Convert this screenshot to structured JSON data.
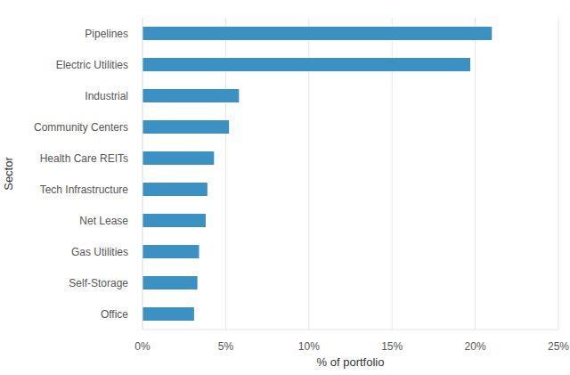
{
  "chart_data": {
    "type": "bar",
    "orientation": "horizontal",
    "xlabel": "% of portfolio",
    "ylabel": "Sector",
    "categories": [
      "Pipelines",
      "Electric Utilities",
      "Industrial",
      "Community Centers",
      "Health Care REITs",
      "Tech Infrastructure",
      "Net Lease",
      "Gas Utilities",
      "Self-Storage",
      "Office"
    ],
    "values": [
      21.0,
      19.7,
      5.8,
      5.2,
      4.3,
      3.9,
      3.8,
      3.4,
      3.3,
      3.1
    ],
    "color": "#3a91c2",
    "xlim": [
      0,
      25
    ],
    "xticks": [
      {
        "value": 0,
        "label": "0%"
      },
      {
        "value": 5,
        "label": "5%"
      },
      {
        "value": 10,
        "label": "10%"
      },
      {
        "value": 15,
        "label": "15%"
      },
      {
        "value": 20,
        "label": "20%"
      },
      {
        "value": 25,
        "label": "25%"
      }
    ],
    "grid": true
  }
}
